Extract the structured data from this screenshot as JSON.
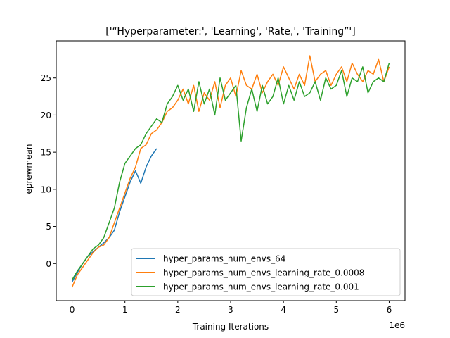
{
  "chart_data": {
    "type": "line",
    "title": "['“Hyperparameter:', 'Learning', 'Rate,', 'Training”']",
    "xlabel": "Training Iterations",
    "ylabel": "eprewmean",
    "x_offset_label": "1e6",
    "xlim": [
      -0.3,
      6.3
    ],
    "ylim": [
      -5,
      30
    ],
    "x_ticks": [
      0,
      1,
      2,
      3,
      4,
      5,
      6
    ],
    "x_tick_labels": [
      "0",
      "1",
      "2",
      "3",
      "4",
      "5",
      "6"
    ],
    "y_ticks": [
      0,
      5,
      10,
      15,
      20,
      25
    ],
    "y_tick_labels": [
      "0",
      "5",
      "10",
      "15",
      "20",
      "25"
    ],
    "grid": false,
    "legend_position": "lower-right",
    "series": [
      {
        "name": "hyper_params_num_envs_64",
        "color": "#1f77b4",
        "x": [
          0.0,
          0.1,
          0.2,
          0.3,
          0.4,
          0.5,
          0.6,
          0.7,
          0.8,
          0.9,
          1.0,
          1.1,
          1.2,
          1.3,
          1.4,
          1.5,
          1.6
        ],
        "y": [
          -2.5,
          -1.2,
          0.0,
          1.0,
          1.6,
          2.2,
          2.8,
          3.5,
          4.5,
          7.0,
          9.0,
          11.0,
          12.5,
          10.8,
          13.0,
          14.5,
          15.5
        ]
      },
      {
        "name": "hyper_params_num_envs_learning_rate_0.0008",
        "color": "#ff7f0e",
        "x": [
          0.0,
          0.1,
          0.2,
          0.3,
          0.4,
          0.5,
          0.6,
          0.7,
          0.8,
          0.9,
          1.0,
          1.1,
          1.2,
          1.3,
          1.4,
          1.5,
          1.6,
          1.7,
          1.8,
          1.9,
          2.0,
          2.1,
          2.2,
          2.3,
          2.4,
          2.5,
          2.6,
          2.7,
          2.8,
          2.9,
          3.0,
          3.1,
          3.2,
          3.3,
          3.4,
          3.5,
          3.6,
          3.7,
          3.8,
          3.9,
          4.0,
          4.1,
          4.2,
          4.3,
          4.4,
          4.5,
          4.6,
          4.7,
          4.8,
          4.9,
          5.0,
          5.1,
          5.2,
          5.3,
          5.4,
          5.5,
          5.6,
          5.7,
          5.8,
          5.9,
          6.0
        ],
        "y": [
          -3.2,
          -1.5,
          -0.5,
          0.5,
          1.5,
          2.2,
          2.5,
          3.5,
          5.5,
          7.5,
          9.5,
          11.5,
          13.0,
          15.5,
          16.0,
          17.5,
          18.0,
          19.0,
          20.5,
          21.0,
          22.0,
          23.5,
          21.5,
          24.0,
          20.5,
          23.0,
          22.0,
          24.5,
          21.0,
          24.0,
          25.0,
          22.5,
          26.0,
          24.0,
          23.5,
          25.5,
          23.0,
          24.5,
          25.5,
          24.0,
          26.5,
          25.0,
          23.5,
          25.5,
          24.0,
          28.0,
          24.5,
          25.5,
          26.0,
          24.0,
          25.5,
          26.5,
          24.5,
          27.0,
          25.5,
          24.5,
          26.0,
          25.5,
          27.5,
          24.5,
          26.5
        ]
      },
      {
        "name": "hyper_params_num_envs_learning_rate_0.001",
        "color": "#2ca02c",
        "x": [
          0.0,
          0.1,
          0.2,
          0.3,
          0.4,
          0.5,
          0.6,
          0.7,
          0.8,
          0.9,
          1.0,
          1.1,
          1.2,
          1.3,
          1.4,
          1.5,
          1.6,
          1.7,
          1.8,
          1.9,
          2.0,
          2.1,
          2.2,
          2.3,
          2.4,
          2.5,
          2.6,
          2.7,
          2.8,
          2.9,
          3.0,
          3.1,
          3.2,
          3.3,
          3.4,
          3.5,
          3.6,
          3.7,
          3.8,
          3.9,
          4.0,
          4.1,
          4.2,
          4.3,
          4.4,
          4.5,
          4.6,
          4.7,
          4.8,
          4.9,
          5.0,
          5.1,
          5.2,
          5.3,
          5.4,
          5.5,
          5.6,
          5.7,
          5.8,
          5.9,
          6.0
        ],
        "y": [
          -2.2,
          -1.0,
          0.0,
          1.0,
          2.0,
          2.5,
          3.5,
          5.5,
          7.5,
          11.0,
          13.5,
          14.5,
          15.5,
          16.0,
          17.5,
          18.5,
          19.5,
          19.0,
          21.5,
          22.5,
          24.0,
          22.0,
          23.5,
          20.5,
          24.5,
          21.5,
          23.5,
          20.0,
          25.0,
          22.0,
          23.0,
          24.0,
          16.5,
          21.0,
          23.5,
          20.5,
          24.0,
          21.5,
          22.5,
          25.0,
          21.5,
          24.0,
          22.0,
          24.5,
          22.5,
          23.0,
          24.5,
          22.0,
          25.0,
          23.5,
          24.0,
          26.0,
          22.5,
          25.0,
          24.5,
          26.5,
          23.0,
          24.5,
          25.0,
          24.5,
          27.0
        ]
      }
    ]
  }
}
